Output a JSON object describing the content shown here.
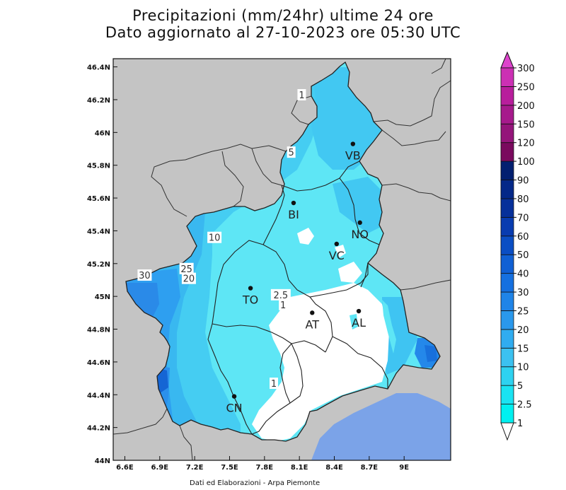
{
  "title": {
    "line1": "Precipitazioni (mm/24hr) ultime 24 ore",
    "line2": "Dato aggiornato al 27-10-2023 ore 05:30 UTC"
  },
  "credit": "Dati ed Elaborazioni - Arpa Piemonte",
  "map_extent": {
    "lon_min": 6.5,
    "lon_max": 9.4,
    "lat_min": 44.0,
    "lat_max": 46.45
  },
  "lon_ticks": [
    {
      "value": 6.6,
      "label": "6.6E"
    },
    {
      "value": 6.9,
      "label": "6.9E"
    },
    {
      "value": 7.2,
      "label": "7.2E"
    },
    {
      "value": 7.5,
      "label": "7.5E"
    },
    {
      "value": 7.8,
      "label": "7.8E"
    },
    {
      "value": 8.1,
      "label": "8.1E"
    },
    {
      "value": 8.4,
      "label": "8.4E"
    },
    {
      "value": 8.7,
      "label": "8.7E"
    },
    {
      "value": 9.0,
      "label": "9E"
    }
  ],
  "lat_ticks": [
    {
      "value": 44.0,
      "label": "44N"
    },
    {
      "value": 44.2,
      "label": "44.2N"
    },
    {
      "value": 44.4,
      "label": "44.4N"
    },
    {
      "value": 44.6,
      "label": "44.6N"
    },
    {
      "value": 44.8,
      "label": "44.8N"
    },
    {
      "value": 45.0,
      "label": "45N"
    },
    {
      "value": 45.2,
      "label": "45.2N"
    },
    {
      "value": 45.4,
      "label": "45.4N"
    },
    {
      "value": 45.6,
      "label": "45.6N"
    },
    {
      "value": 45.8,
      "label": "45.8N"
    },
    {
      "value": 46.0,
      "label": "46N"
    },
    {
      "value": 46.2,
      "label": "46.2N"
    },
    {
      "value": 46.4,
      "label": "46.4N"
    }
  ],
  "cities": [
    {
      "code": "VB",
      "lon": 8.56,
      "lat": 45.93
    },
    {
      "code": "BI",
      "lon": 8.05,
      "lat": 45.57
    },
    {
      "code": "NO",
      "lon": 8.62,
      "lat": 45.45
    },
    {
      "code": "VC",
      "lon": 8.42,
      "lat": 45.32
    },
    {
      "code": "TO",
      "lon": 7.68,
      "lat": 45.05
    },
    {
      "code": "AT",
      "lon": 8.21,
      "lat": 44.9
    },
    {
      "code": "AL",
      "lon": 8.61,
      "lat": 44.91
    },
    {
      "code": "CN",
      "lon": 7.54,
      "lat": 44.39
    }
  ],
  "contour_labels": [
    {
      "text": "1",
      "lon": 8.12,
      "lat": 46.23
    },
    {
      "text": "5",
      "lon": 8.03,
      "lat": 45.88
    },
    {
      "text": "10",
      "lon": 7.37,
      "lat": 45.36
    },
    {
      "text": "25",
      "lon": 7.13,
      "lat": 45.17
    },
    {
      "text": "20",
      "lon": 7.15,
      "lat": 45.11
    },
    {
      "text": "30",
      "lon": 6.77,
      "lat": 45.13
    },
    {
      "text": "2.5",
      "lon": 7.94,
      "lat": 45.01
    },
    {
      "text": "1",
      "lon": 7.96,
      "lat": 44.95
    },
    {
      "text": "1",
      "lon": 7.88,
      "lat": 44.47
    }
  ],
  "colorbar": {
    "levels": [
      "1",
      "2.5",
      "5",
      "10",
      "15",
      "20",
      "25",
      "30",
      "40",
      "50",
      "60",
      "70",
      "80",
      "90",
      "100",
      "120",
      "150",
      "200",
      "250",
      "300"
    ],
    "colors": [
      "#00f0f0",
      "#1ae3f2",
      "#2ed2f0",
      "#3bc1f0",
      "#30acf0",
      "#2a98ec",
      "#1f84e8",
      "#1570e0",
      "#1060d4",
      "#0a4ec4",
      "#083cb0",
      "#06309a",
      "#042888",
      "#021f70",
      "#7a0a5e",
      "#94157a",
      "#a61a8c",
      "#b81e9c",
      "#cc30b4"
    ],
    "under_color": "#ffffff",
    "over_color": "#dd44cc"
  },
  "colors": {
    "outside": "#c4c4c4",
    "sea": "#7ba3e8",
    "light_precip": "#5ee6f5",
    "mid_precip": "#3fc6f0",
    "heavy_precip": "#2596ec",
    "no_precip": "#ffffff"
  }
}
